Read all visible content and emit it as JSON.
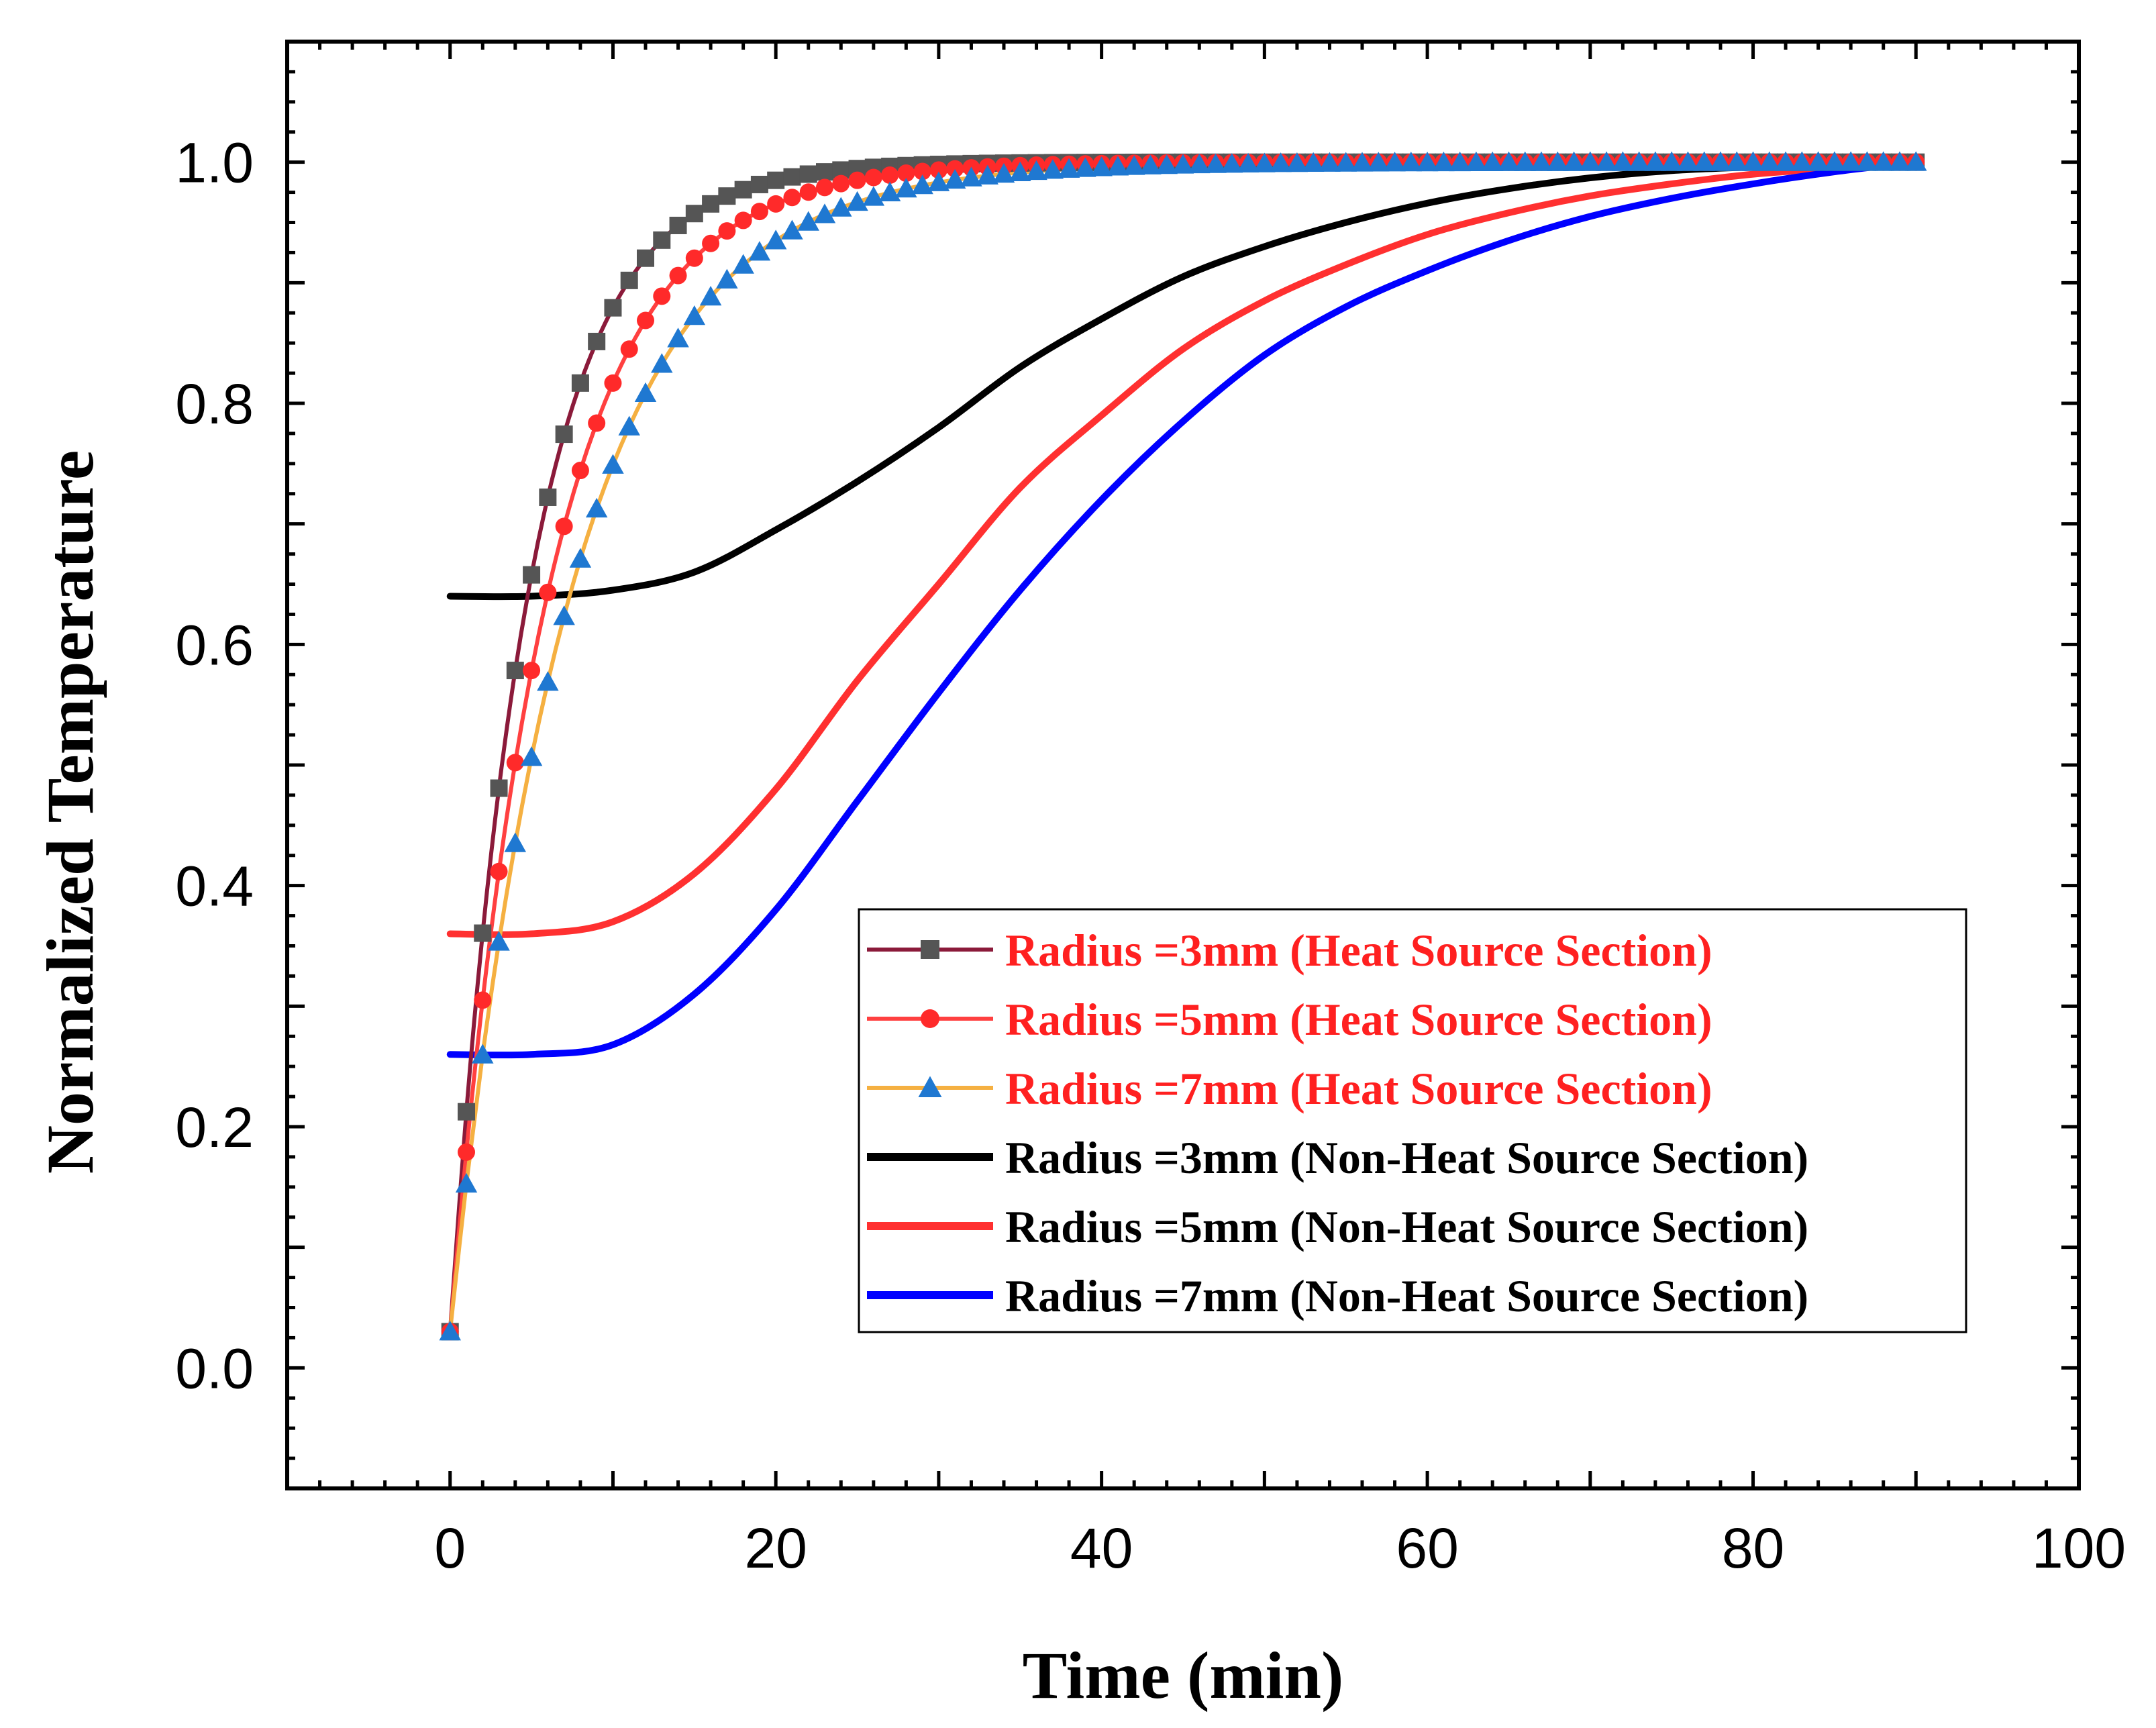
{
  "chart_data": {
    "type": "line",
    "title": "",
    "xlabel": "Time (min)",
    "ylabel": "Normalized Temperature",
    "xlim": [
      -10,
      100
    ],
    "ylim": [
      -0.1,
      1.1
    ],
    "xticks": [
      0,
      20,
      40,
      60,
      80,
      100
    ],
    "xtick_labels": [
      "0",
      "20",
      "40",
      "60",
      "80",
      "100"
    ],
    "yticks": [
      0.0,
      0.2,
      0.4,
      0.6,
      0.8,
      1.0
    ],
    "ytick_labels": [
      "0.0",
      "0.2",
      "0.4",
      "0.6",
      "0.8",
      "1.0"
    ],
    "grid": false,
    "legend_position": "bottom-right",
    "series": [
      {
        "name": "Radius =3mm (Heat Source Section)",
        "color": "#8B1A3A",
        "marker_color": "#555555",
        "marker": "square",
        "label_color": "#FF2020",
        "model": {
          "kind": "exp",
          "start": 0.03,
          "end": 1.0,
          "tau": 4.8
        },
        "x_range": [
          0,
          90
        ],
        "x_step": 1
      },
      {
        "name": "Radius =5mm (Heat Source Section)",
        "color": "#FF4040",
        "marker_color": "#FF2A2A",
        "marker": "circle",
        "label_color": "#FF2020",
        "model": {
          "kind": "exp",
          "start": 0.03,
          "end": 1.0,
          "tau": 6.0
        },
        "x_range": [
          0,
          90
        ],
        "x_step": 1
      },
      {
        "name": "Radius =7mm (Heat Source Section)",
        "color": "#F5B041",
        "marker_color": "#1F78D1",
        "marker": "triangle",
        "label_color": "#FF2020",
        "model": {
          "kind": "exp",
          "start": 0.03,
          "end": 1.0,
          "tau": 7.4
        },
        "x_range": [
          0,
          90
        ],
        "x_step": 1
      },
      {
        "name": "Radius =3mm (Non-Heat Source Section)",
        "color": "#000000",
        "marker": "none",
        "label_color": "#000000",
        "points": [
          [
            0,
            0.64
          ],
          [
            5,
            0.64
          ],
          [
            10,
            0.645
          ],
          [
            15,
            0.66
          ],
          [
            20,
            0.695
          ],
          [
            25,
            0.735
          ],
          [
            30,
            0.78
          ],
          [
            35,
            0.83
          ],
          [
            40,
            0.87
          ],
          [
            45,
            0.905
          ],
          [
            50,
            0.93
          ],
          [
            55,
            0.95
          ],
          [
            60,
            0.966
          ],
          [
            65,
            0.978
          ],
          [
            70,
            0.987
          ],
          [
            75,
            0.993
          ],
          [
            80,
            0.996
          ],
          [
            85,
            0.998
          ],
          [
            90,
            1.0
          ]
        ]
      },
      {
        "name": "Radius =5mm (Non-Heat Source Section)",
        "color": "#FF3030",
        "marker": "none",
        "label_color": "#000000",
        "points": [
          [
            0,
            0.36
          ],
          [
            5,
            0.36
          ],
          [
            10,
            0.37
          ],
          [
            15,
            0.41
          ],
          [
            20,
            0.48
          ],
          [
            25,
            0.57
          ],
          [
            30,
            0.65
          ],
          [
            35,
            0.73
          ],
          [
            40,
            0.79
          ],
          [
            45,
            0.845
          ],
          [
            50,
            0.885
          ],
          [
            55,
            0.915
          ],
          [
            60,
            0.94
          ],
          [
            65,
            0.958
          ],
          [
            70,
            0.972
          ],
          [
            75,
            0.982
          ],
          [
            80,
            0.99
          ],
          [
            85,
            0.995
          ],
          [
            90,
            1.0
          ]
        ]
      },
      {
        "name": "Radius =7mm (Non-Heat Source Section)",
        "color": "#0000FF",
        "marker": "none",
        "label_color": "#000000",
        "points": [
          [
            0,
            0.26
          ],
          [
            5,
            0.26
          ],
          [
            10,
            0.268
          ],
          [
            15,
            0.31
          ],
          [
            20,
            0.38
          ],
          [
            25,
            0.47
          ],
          [
            30,
            0.56
          ],
          [
            35,
            0.645
          ],
          [
            40,
            0.72
          ],
          [
            45,
            0.785
          ],
          [
            50,
            0.84
          ],
          [
            55,
            0.88
          ],
          [
            60,
            0.91
          ],
          [
            65,
            0.935
          ],
          [
            70,
            0.955
          ],
          [
            75,
            0.97
          ],
          [
            80,
            0.982
          ],
          [
            85,
            0.992
          ],
          [
            90,
            1.0
          ]
        ]
      }
    ]
  }
}
